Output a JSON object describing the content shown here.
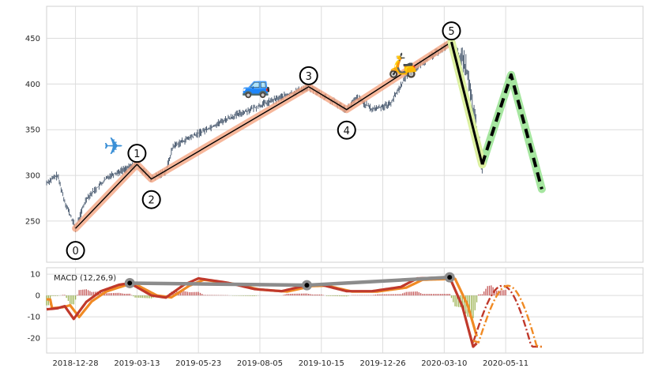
{
  "chart_data": [
    {
      "type": "candlestick",
      "panel": "price",
      "ylim": [
        205,
        485
      ],
      "yticks": [
        250,
        300,
        350,
        400,
        450
      ],
      "x_domain": [
        0,
        330
      ],
      "grid": true,
      "wave_points": [
        {
          "label": "0",
          "x": 16,
          "y": 242
        },
        {
          "label": "1",
          "x": 50,
          "y": 312
        },
        {
          "label": "2",
          "x": 58,
          "y": 296
        },
        {
          "label": "3",
          "x": 145,
          "y": 397
        },
        {
          "label": "4",
          "x": 166,
          "y": 372
        },
        {
          "label": "5",
          "x": 224,
          "y": 446
        }
      ],
      "forecast_path": [
        {
          "x": 224,
          "y": 446
        },
        {
          "x": 241,
          "y": 312
        },
        {
          "x": 257,
          "y": 410
        },
        {
          "x": 274,
          "y": 285
        }
      ],
      "markers": [
        {
          "icon": "airplane",
          "glyph": "✈",
          "x": 37,
          "y": 323
        },
        {
          "icon": "car",
          "glyph": "🚙",
          "x": 116,
          "y": 390
        },
        {
          "icon": "scooter",
          "glyph": "🛵",
          "x": 197,
          "y": 412
        }
      ],
      "colors": {
        "candles": "#3d4f66",
        "wave_line": "#000000",
        "wave_halo": "#f4a582",
        "forecast_halo": "#a6e6a0",
        "forecast_line": "#000000",
        "forecast_start_halo": "#ddf0a0"
      }
    },
    {
      "type": "line",
      "panel": "macd",
      "title": "MACD (12,26,9)",
      "ylim": [
        -27,
        13
      ],
      "yticks": [
        10,
        0,
        -10,
        -20
      ],
      "x_domain": [
        0,
        330
      ],
      "categories_ticks": [
        {
          "label": "2018-12-28",
          "x": 16
        },
        {
          "label": "2019-03-13",
          "x": 50
        },
        {
          "label": "2019-05-23",
          "x": 84
        },
        {
          "label": "2019-08-05",
          "x": 118
        },
        {
          "label": "2019-10-15",
          "x": 152
        },
        {
          "label": "2019-12-26",
          "x": 186
        },
        {
          "label": "2020-03-10",
          "x": 220
        },
        {
          "label": "2020-05-11",
          "x": 254
        }
      ],
      "divergence_points": [
        {
          "x": 46,
          "y": 5.8
        },
        {
          "x": 144,
          "y": 4.8
        },
        {
          "x": 223,
          "y": 8.5
        }
      ],
      "colors": {
        "macd": "#c0392b",
        "signal": "#f08a24",
        "hist_pos": "#b22222",
        "hist_neg": "#7a9a1a",
        "divergence": "#8c8c8c"
      }
    }
  ]
}
